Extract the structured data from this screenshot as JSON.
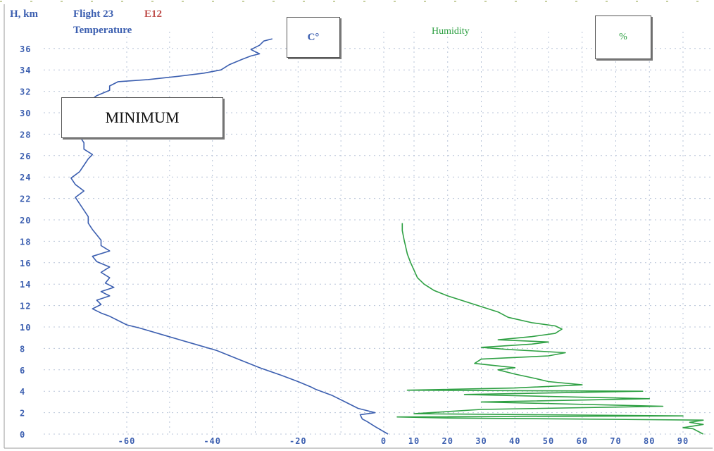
{
  "header": {
    "height_label": "H, km",
    "flight_label": "Flight 23",
    "code_label": "E12",
    "temperature_label": "Temperature",
    "humidity_label": "Humidity",
    "temp_unit_label": "C°",
    "humidity_unit_label": "%",
    "minimum_label": "MINIMUM"
  },
  "colors": {
    "temperature": "#3c5fb0",
    "humidity": "#2ea043",
    "grid": "#b8c4d8",
    "axis_text": "#3c5fb0",
    "code": "#c0504d"
  },
  "chart_data": {
    "type": "line",
    "title": "",
    "ylabel": "H, km",
    "ylim": [
      0,
      37
    ],
    "y_ticks": [
      0,
      2,
      4,
      6,
      8,
      10,
      12,
      14,
      16,
      18,
      20,
      22,
      24,
      26,
      28,
      30,
      32,
      34,
      36
    ],
    "y_tick_labels": [
      "0",
      "2",
      "4",
      "6",
      "8",
      "10",
      "12",
      "14",
      "16",
      "18",
      "20",
      "22",
      "24",
      "26",
      "28",
      "30",
      "32",
      "34",
      "36"
    ],
    "temp_axis": {
      "label": "C°",
      "ticks": [
        -60,
        -40,
        -20,
        0
      ],
      "tick_labels": [
        "-60",
        "-40",
        "-20",
        "0"
      ],
      "range": [
        -75,
        1
      ]
    },
    "humidity_axis": {
      "label": "%",
      "ticks": [
        10,
        20,
        30,
        40,
        50,
        60,
        70,
        80,
        90
      ],
      "tick_labels": [
        "10",
        "20",
        "30",
        "40",
        "50",
        "60",
        "70",
        "80",
        "90"
      ],
      "range": [
        4,
        96
      ]
    },
    "grid": true,
    "series": [
      {
        "name": "Temperature",
        "axis": "temp",
        "points": [
          [
            1.0,
            0.0
          ],
          [
            -2,
            0.7
          ],
          [
            -4,
            1.2
          ],
          [
            -5,
            1.4
          ],
          [
            -5.5,
            1.8
          ],
          [
            -2,
            2.0
          ],
          [
            -6,
            2.4
          ],
          [
            -9,
            3.0
          ],
          [
            -12,
            3.6
          ],
          [
            -16,
            4.2
          ],
          [
            -17,
            4.4
          ],
          [
            -20,
            4.9
          ],
          [
            -24,
            5.5
          ],
          [
            -29,
            6.2
          ],
          [
            -34,
            7.0
          ],
          [
            -39,
            7.8
          ],
          [
            -45,
            8.5
          ],
          [
            -51,
            9.2
          ],
          [
            -57,
            9.9
          ],
          [
            -60,
            10.2
          ],
          [
            -62,
            10.6
          ],
          [
            -64,
            11.0
          ],
          [
            -66,
            11.3
          ],
          [
            -68,
            11.7
          ],
          [
            -66,
            12.1
          ],
          [
            -67,
            12.5
          ],
          [
            -64,
            12.9
          ],
          [
            -66,
            13.3
          ],
          [
            -63,
            13.7
          ],
          [
            -65,
            14.1
          ],
          [
            -64,
            14.6
          ],
          [
            -66,
            15.1
          ],
          [
            -64,
            15.6
          ],
          [
            -67,
            16.1
          ],
          [
            -68,
            16.6
          ],
          [
            -64,
            17.1
          ],
          [
            -66,
            17.6
          ],
          [
            -66,
            18.1
          ],
          [
            -67,
            18.6
          ],
          [
            -68,
            19.1
          ],
          [
            -69,
            19.7
          ],
          [
            -69,
            20.3
          ],
          [
            -70,
            20.9
          ],
          [
            -71,
            21.5
          ],
          [
            -72,
            22.1
          ],
          [
            -70,
            22.7
          ],
          [
            -72,
            23.3
          ],
          [
            -73,
            23.9
          ],
          [
            -71,
            24.5
          ],
          [
            -70,
            25.1
          ],
          [
            -69,
            25.7
          ],
          [
            -68,
            26.1
          ],
          [
            -70,
            26.6
          ],
          [
            -70,
            27.2
          ],
          [
            -71,
            27.8
          ],
          [
            -72,
            28.4
          ],
          [
            -74,
            29.0
          ],
          [
            -75,
            29.5
          ],
          [
            -72,
            30.0
          ],
          [
            -71,
            30.5
          ],
          [
            -69,
            31.0
          ],
          [
            -67,
            31.6
          ],
          [
            -64,
            32.1
          ],
          [
            -64,
            32.5
          ],
          [
            -62,
            32.9
          ],
          [
            -55,
            33.1
          ],
          [
            -48,
            33.4
          ],
          [
            -42,
            33.7
          ],
          [
            -38,
            34.0
          ],
          [
            -36,
            34.5
          ],
          [
            -33,
            35.0
          ],
          [
            -31,
            35.3
          ],
          [
            -29,
            35.5
          ],
          [
            -31,
            35.9
          ],
          [
            -29,
            36.3
          ],
          [
            -28,
            36.7
          ],
          [
            -26,
            36.9
          ]
        ]
      },
      {
        "name": "Humidity",
        "axis": "humidity",
        "points": [
          [
            96,
            0.0
          ],
          [
            93,
            0.5
          ],
          [
            90,
            0.6
          ],
          [
            96,
            0.9
          ],
          [
            92,
            1.1
          ],
          [
            96,
            1.3
          ],
          [
            60,
            1.4
          ],
          [
            20,
            1.5
          ],
          [
            5,
            1.6
          ],
          [
            90,
            1.7
          ],
          [
            10,
            1.9
          ],
          [
            30,
            2.3
          ],
          [
            84,
            2.6
          ],
          [
            30,
            3.0
          ],
          [
            80,
            3.3
          ],
          [
            25,
            3.7
          ],
          [
            78,
            4.0
          ],
          [
            8,
            4.1
          ],
          [
            40,
            4.3
          ],
          [
            60,
            4.6
          ],
          [
            50,
            4.9
          ],
          [
            46,
            5.2
          ],
          [
            40,
            5.6
          ],
          [
            35,
            6.0
          ],
          [
            40,
            6.2
          ],
          [
            28,
            6.6
          ],
          [
            30,
            7.0
          ],
          [
            50,
            7.3
          ],
          [
            55,
            7.6
          ],
          [
            38,
            7.9
          ],
          [
            30,
            8.1
          ],
          [
            45,
            8.4
          ],
          [
            50,
            8.6
          ],
          [
            35,
            8.8
          ],
          [
            45,
            9.1
          ],
          [
            52,
            9.4
          ],
          [
            54,
            9.8
          ],
          [
            52,
            10.1
          ],
          [
            45,
            10.4
          ],
          [
            38,
            10.9
          ],
          [
            35,
            11.4
          ],
          [
            30,
            11.9
          ],
          [
            25,
            12.4
          ],
          [
            20,
            12.9
          ],
          [
            16,
            13.4
          ],
          [
            13,
            14.0
          ],
          [
            11,
            14.6
          ],
          [
            10,
            15.3
          ],
          [
            9,
            16.0
          ],
          [
            8,
            16.8
          ],
          [
            7.5,
            17.5
          ],
          [
            7,
            18.2
          ],
          [
            6.5,
            19.0
          ],
          [
            6.5,
            19.7
          ]
        ]
      }
    ]
  }
}
